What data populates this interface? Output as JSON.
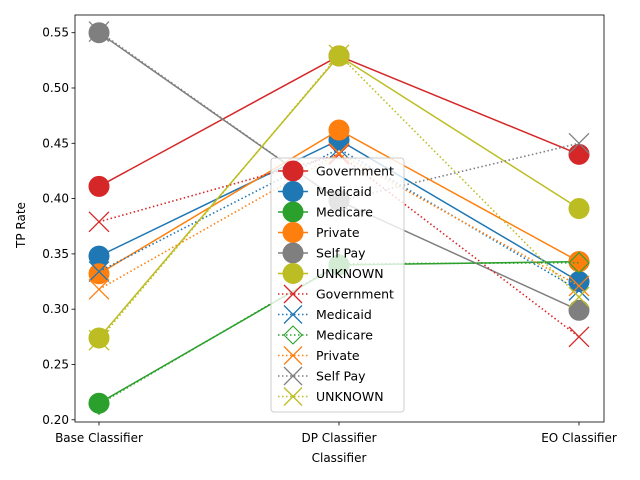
{
  "chart_data": {
    "type": "line",
    "title": "",
    "xlabel": "Classifier",
    "ylabel": "TP Rate",
    "categories": [
      "Base Classifier",
      "DP Classifier",
      "EO Classifier"
    ],
    "ylim": [
      0.198,
      0.566
    ],
    "yticks": [
      "0.20",
      "0.25",
      "0.30",
      "0.35",
      "0.40",
      "0.45",
      "0.50",
      "0.55"
    ],
    "grid": false,
    "legend_position": "center-bottom",
    "series": [
      {
        "name": "Government",
        "color": "#d62728",
        "style": "solid",
        "marker": "circle",
        "values": [
          0.411,
          0.529,
          0.44
        ]
      },
      {
        "name": "Medicaid",
        "color": "#1f77b4",
        "style": "solid",
        "marker": "circle",
        "values": [
          0.348,
          0.453,
          0.325
        ]
      },
      {
        "name": "Medicare",
        "color": "#2ca02c",
        "style": "solid",
        "marker": "circle",
        "values": [
          0.215,
          0.34,
          0.343
        ]
      },
      {
        "name": "Private",
        "color": "#ff7f0e",
        "style": "solid",
        "marker": "circle",
        "values": [
          0.332,
          0.462,
          0.343
        ]
      },
      {
        "name": "Self Pay",
        "color": "#7f7f7f",
        "style": "solid",
        "marker": "circle",
        "values": [
          0.55,
          0.398,
          0.299
        ]
      },
      {
        "name": "UNKNOWN",
        "color": "#bcbd22",
        "style": "solid",
        "marker": "circle",
        "values": [
          0.274,
          0.529,
          0.391
        ]
      },
      {
        "name": "Government",
        "color": "#d62728",
        "style": "dotted",
        "marker": "x",
        "values": [
          0.379,
          0.44,
          0.275
        ]
      },
      {
        "name": "Medicaid",
        "color": "#1f77b4",
        "style": "dotted",
        "marker": "x",
        "values": [
          0.334,
          0.445,
          0.317
        ]
      },
      {
        "name": "Medicare",
        "color": "#2ca02c",
        "style": "dotted",
        "marker": "diamond",
        "values": [
          0.214,
          0.341,
          0.342
        ]
      },
      {
        "name": "Private",
        "color": "#ff7f0e",
        "style": "dotted",
        "marker": "x",
        "values": [
          0.318,
          0.441,
          0.321
        ]
      },
      {
        "name": "Self Pay",
        "color": "#7f7f7f",
        "style": "dotted",
        "marker": "x",
        "values": [
          0.551,
          0.398,
          0.45
        ]
      },
      {
        "name": "UNKNOWN",
        "color": "#bcbd22",
        "style": "dotted",
        "marker": "x",
        "values": [
          0.272,
          0.53,
          0.311
        ]
      }
    ]
  }
}
